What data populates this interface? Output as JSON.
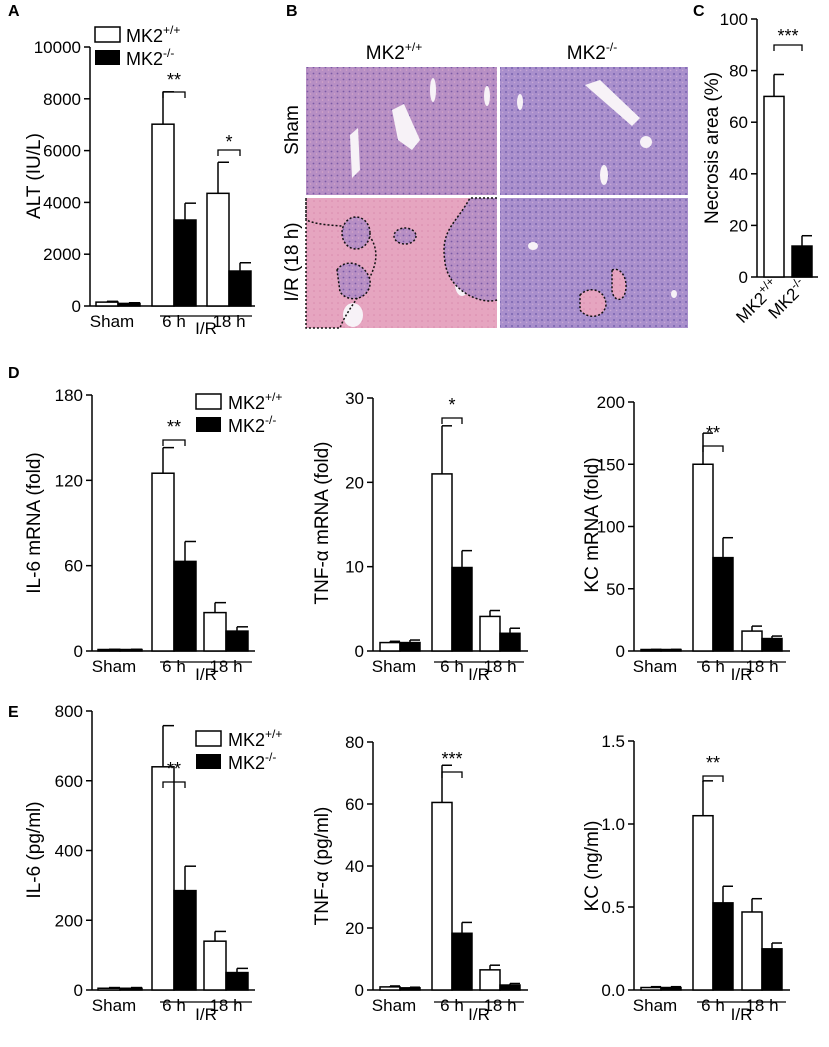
{
  "panels": {
    "A": "A",
    "B": "B",
    "C": "C",
    "D": "D",
    "E": "E"
  },
  "legend": {
    "wt": "MK2",
    "wt_sup": "+/+",
    "ko": "MK2",
    "ko_sup": "-/-"
  },
  "histology": {
    "col_labels": [
      "MK2",
      "MK2"
    ],
    "col_sups": [
      "+/+",
      "-/-"
    ],
    "row_labels": [
      "Sham",
      "I/R (18 h)"
    ]
  },
  "chart_data": [
    {
      "id": "A",
      "type": "bar",
      "ylabel": "ALT (IU/L)",
      "ylim": [
        0,
        10000
      ],
      "yticks": [
        "0",
        "2000",
        "4000",
        "6000",
        "8000",
        "10000"
      ],
      "categories": [
        "Sham",
        "6 h",
        "18 h"
      ],
      "group_label": "I/R",
      "series": [
        {
          "name": "MK2+/+",
          "values": [
            150,
            7020,
            4350
          ],
          "errors": [
            30,
            1250,
            1200
          ]
        },
        {
          "name": "MK2-/-",
          "values": [
            100,
            3320,
            1350
          ],
          "errors": [
            25,
            650,
            320
          ]
        }
      ],
      "annotations": [
        {
          "text": "**",
          "category": "6 h"
        },
        {
          "text": "*",
          "category": "18 h"
        }
      ]
    },
    {
      "id": "C",
      "type": "bar",
      "ylabel": "Necrosis area (%)",
      "ylim": [
        0,
        100
      ],
      "yticks": [
        "0",
        "20",
        "40",
        "60",
        "80",
        "100"
      ],
      "categories": [
        "MK2+/+",
        "MK2-/-"
      ],
      "values": [
        70,
        12
      ],
      "errors": [
        8.5,
        4
      ],
      "annotations": [
        {
          "text": "***"
        }
      ]
    },
    {
      "id": "D1",
      "type": "bar",
      "ylabel": "IL-6 mRNA (fold)",
      "ylim": [
        0,
        180
      ],
      "yticks": [
        "0",
        "60",
        "120",
        "180"
      ],
      "categories": [
        "Sham",
        "6 h",
        "18 h"
      ],
      "group_label": "I/R",
      "series": [
        {
          "name": "MK2+/+",
          "values": [
            1,
            125,
            27
          ],
          "errors": [
            0.2,
            18,
            7
          ]
        },
        {
          "name": "MK2-/-",
          "values": [
            1,
            63,
            14
          ],
          "errors": [
            0.2,
            14,
            3
          ]
        }
      ],
      "annotations": [
        {
          "text": "**",
          "category": "6 h"
        }
      ]
    },
    {
      "id": "D2",
      "type": "bar",
      "ylabel": "TNF-α mRNA (fold)",
      "ylim": [
        0,
        30
      ],
      "yticks": [
        "0",
        "10",
        "20",
        "30"
      ],
      "categories": [
        "Sham",
        "6 h",
        "18 h"
      ],
      "group_label": "I/R",
      "series": [
        {
          "name": "MK2+/+",
          "values": [
            1,
            21,
            4.1
          ],
          "errors": [
            0.15,
            5.7,
            0.7
          ]
        },
        {
          "name": "MK2-/-",
          "values": [
            1,
            9.9,
            2.1
          ],
          "errors": [
            0.3,
            2,
            0.6
          ]
        }
      ],
      "annotations": [
        {
          "text": "*",
          "category": "6 h"
        }
      ]
    },
    {
      "id": "D3",
      "type": "bar",
      "ylabel": "KC mRNA (fold)",
      "ylim": [
        0,
        200
      ],
      "yticks": [
        "0",
        "50",
        "100",
        "150",
        "200"
      ],
      "categories": [
        "Sham",
        "6 h",
        "18 h"
      ],
      "group_label": "I/R",
      "series": [
        {
          "name": "MK2+/+",
          "values": [
            1,
            150,
            16
          ],
          "errors": [
            0.3,
            25,
            4
          ]
        },
        {
          "name": "MK2-/-",
          "values": [
            1,
            75,
            10
          ],
          "errors": [
            0.3,
            16,
            2
          ]
        }
      ],
      "annotations": [
        {
          "text": "**",
          "category": "6 h"
        }
      ]
    },
    {
      "id": "E1",
      "type": "bar",
      "ylabel": "IL-6 (pg/ml)",
      "ylim": [
        0,
        800
      ],
      "yticks": [
        "0",
        "200",
        "400",
        "600",
        "800"
      ],
      "categories": [
        "Sham",
        "6 h",
        "18 h"
      ],
      "group_label": "I/R",
      "series": [
        {
          "name": "MK2+/+",
          "values": [
            5,
            640,
            140
          ],
          "errors": [
            2,
            118,
            28
          ]
        },
        {
          "name": "MK2-/-",
          "values": [
            5,
            285,
            50
          ],
          "errors": [
            2,
            70,
            12
          ]
        }
      ],
      "annotations": [
        {
          "text": "**",
          "category": "6 h"
        }
      ]
    },
    {
      "id": "E2",
      "type": "bar",
      "ylabel": "TNF-α (pg/ml)",
      "ylim": [
        0,
        80
      ],
      "yticks": [
        "0",
        "20",
        "40",
        "60",
        "80"
      ],
      "categories": [
        "Sham",
        "6 h",
        "18 h"
      ],
      "group_label": "I/R",
      "series": [
        {
          "name": "MK2+/+",
          "values": [
            1,
            60.5,
            6.5
          ],
          "errors": [
            0.3,
            12,
            1.5
          ]
        },
        {
          "name": "MK2-/-",
          "values": [
            0.7,
            18.3,
            1.6
          ],
          "errors": [
            0.2,
            3.5,
            0.5
          ]
        }
      ],
      "annotations": [
        {
          "text": "***",
          "category": "6 h"
        }
      ]
    },
    {
      "id": "E3",
      "type": "bar",
      "ylabel": "KC (ng/ml)",
      "ylim": [
        0,
        1.5
      ],
      "yticks": [
        "0.0",
        "0.5",
        "1.0",
        "1.5"
      ],
      "categories": [
        "Sham",
        "6 h",
        "18 h"
      ],
      "group_label": "I/R",
      "series": [
        {
          "name": "MK2+/+",
          "values": [
            0.015,
            1.05,
            0.47
          ],
          "errors": [
            0.005,
            0.21,
            0.08
          ]
        },
        {
          "name": "MK2-/-",
          "values": [
            0.015,
            0.525,
            0.248
          ],
          "errors": [
            0.005,
            0.1,
            0.035
          ]
        }
      ],
      "annotations": [
        {
          "text": "**",
          "category": "6 h"
        }
      ]
    }
  ]
}
